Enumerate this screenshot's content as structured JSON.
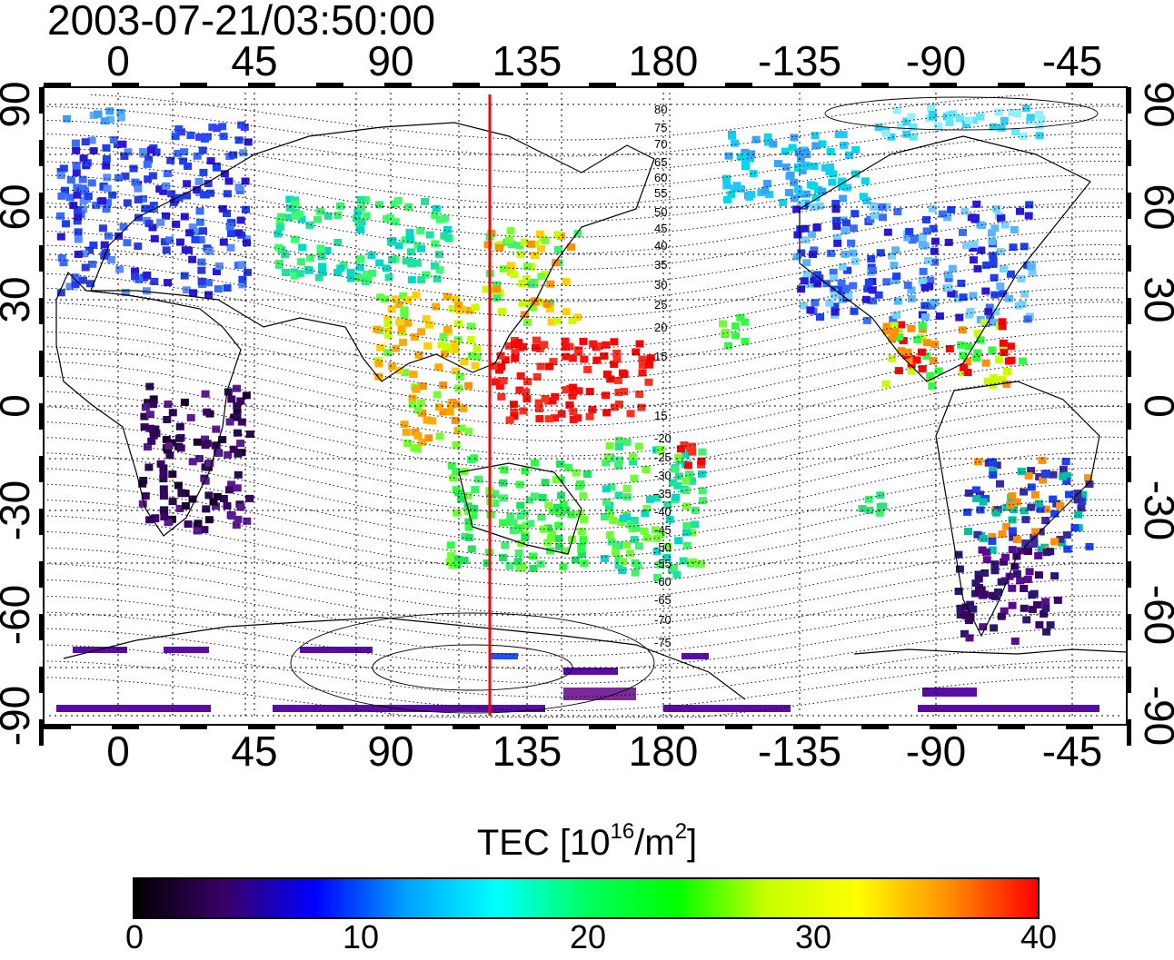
{
  "title": "2003-07-21/03:50:00",
  "map": {
    "top_axis_labels": [
      "0",
      "45",
      "90",
      "135",
      "180",
      "-135",
      "-90",
      "-45"
    ],
    "bottom_axis_labels": [
      "0",
      "45",
      "90",
      "135",
      "180",
      "-135",
      "-90",
      "-45"
    ],
    "left_axis_labels": [
      "90",
      "60",
      "30",
      "0",
      "-30",
      "-60",
      "-90"
    ],
    "right_axis_labels": [
      "90",
      "60",
      "30",
      "0",
      "-30",
      "-60",
      "-90"
    ],
    "north_contour_labels": [
      "80",
      "75",
      "70",
      "65",
      "60",
      "55",
      "50",
      "45",
      "40",
      "35",
      "30",
      "25",
      "20",
      "15"
    ],
    "south_contour_labels": [
      "15",
      "20",
      "25",
      "30",
      "35",
      "40",
      "45",
      "50",
      "55",
      "60",
      "65",
      "70",
      "75"
    ],
    "subsolar_meridian_color": "#ff0000"
  },
  "colorbar": {
    "title_main": "TEC  [10",
    "title_sup1": "16",
    "title_mid": "/m",
    "title_sup2": "2",
    "title_end": "]",
    "tick_labels": [
      "0",
      "10",
      "20",
      "30",
      "40"
    ],
    "colors": [
      "#000000",
      "#3a0068",
      "#0000ff",
      "#00a0ff",
      "#00ffff",
      "#00ff60",
      "#00ff00",
      "#c8ff00",
      "#ffff00",
      "#ff9000",
      "#ff0000"
    ]
  }
}
